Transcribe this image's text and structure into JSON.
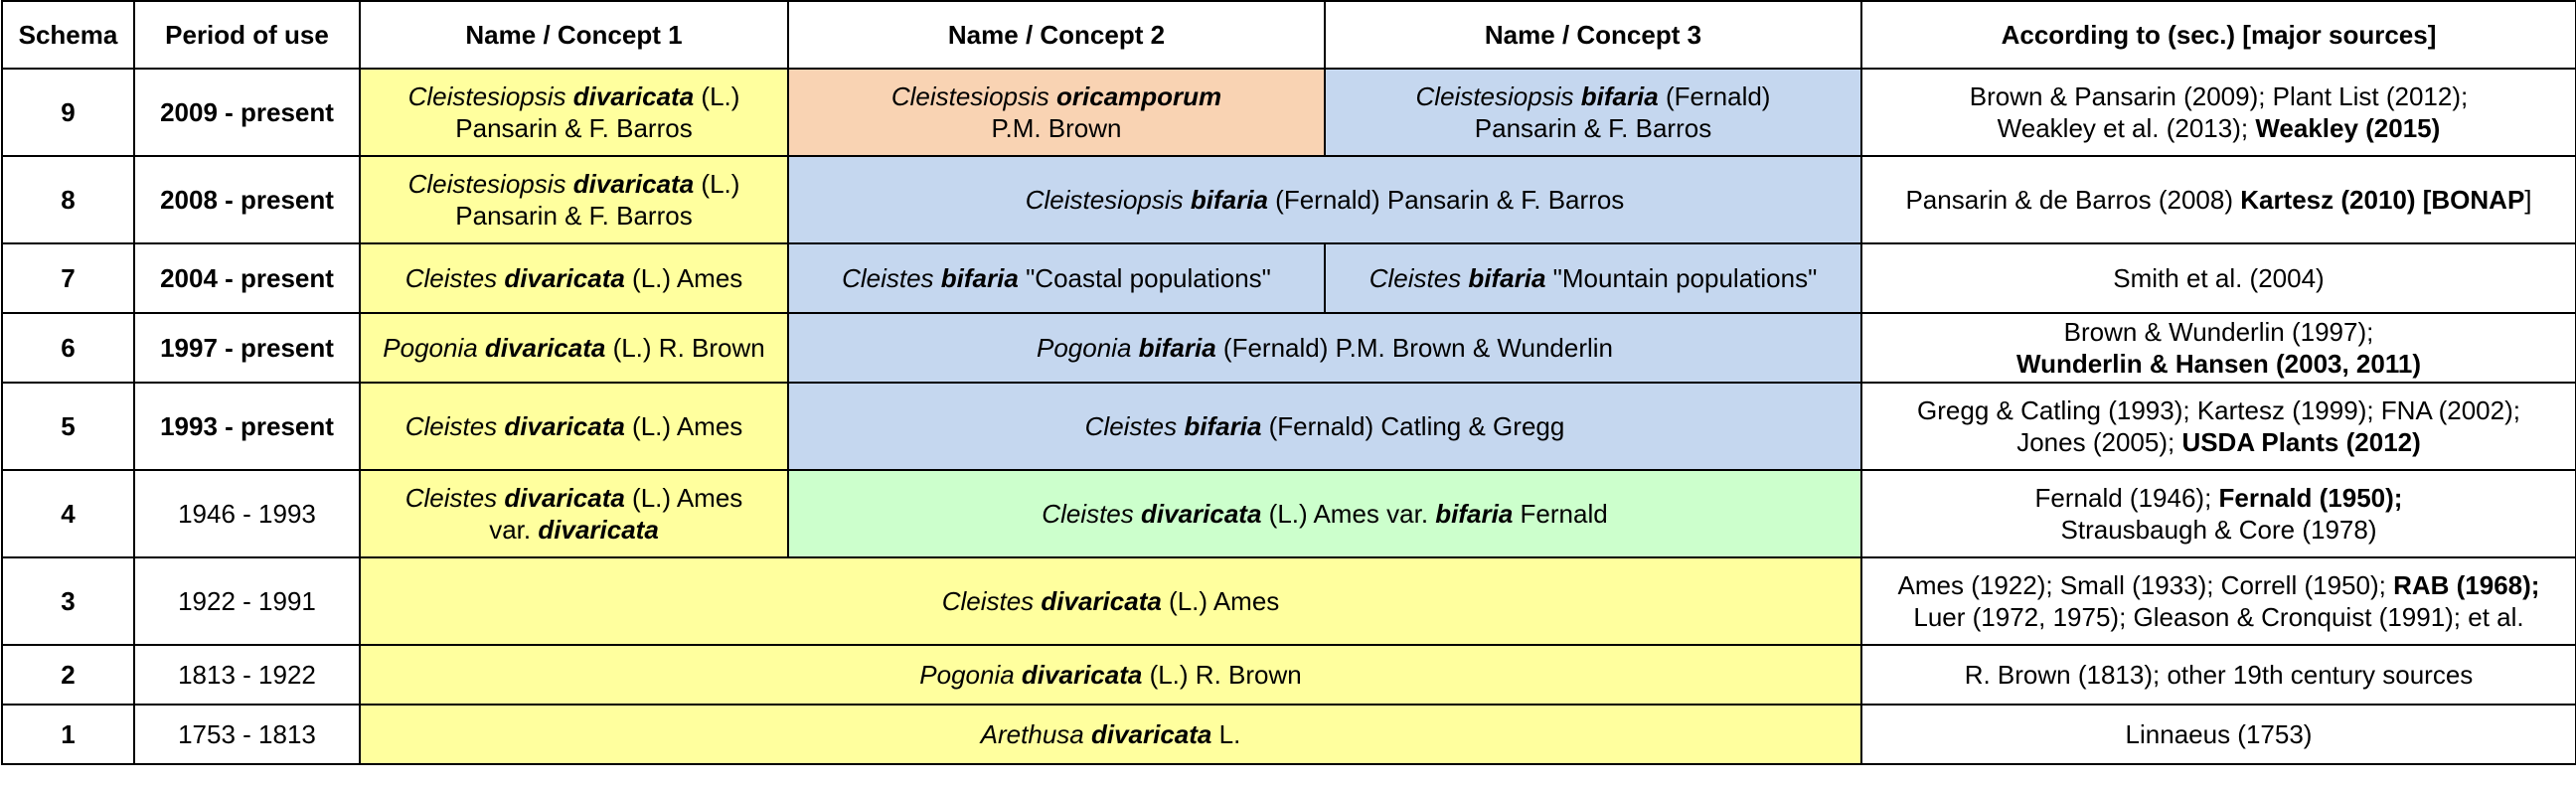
{
  "colors": {
    "yellow": "#ffff9e",
    "orange": "#f9d3b3",
    "blue": "#c5d7ef",
    "green": "#ccffcc",
    "white": "#ffffff",
    "border": "#000000"
  },
  "headers": {
    "schema": "Schema",
    "period": "Period of use",
    "concept1": "Name / Concept 1",
    "concept2": "Name / Concept 2",
    "concept3": "Name / Concept 3",
    "sources": "According to (sec.) [major sources]"
  },
  "rows": [
    {
      "schema": "9",
      "period": "2009 - present",
      "c1": {
        "genus": "Cleistesiopsis",
        "epithet": "divaricata",
        "author1": "(L.)",
        "author2": "Pansarin & F. Barros"
      },
      "c2": {
        "genus": "Cleistesiopsis",
        "epithet": "oricamporum",
        "author": "P.M. Brown"
      },
      "c3": {
        "genus": "Cleistesiopsis",
        "epithet": "bifaria",
        "author1": "(Fernald)",
        "author2": "Pansarin & F. Barros"
      },
      "sources": {
        "line1": "Brown & Pansarin (2009); Plant List (2012);",
        "line2a": "Weakley et al. (2013); ",
        "line2b": "Weakley (2015)"
      }
    },
    {
      "schema": "8",
      "period": "2008 - present",
      "c1": {
        "genus": "Cleistesiopsis",
        "epithet": "divaricata",
        "author1": "(L.)",
        "author2": "Pansarin & F. Barros"
      },
      "c23": {
        "genus": "Cleistesiopsis",
        "epithet": "bifaria",
        "author": "(Fernald) Pansarin & F. Barros"
      },
      "sources": {
        "a": "Pansarin & de Barros (2008) ",
        "b": "Kartesz (2010) [BONAP",
        "c": "]"
      }
    },
    {
      "schema": "7",
      "period": "2004 - present",
      "c1": {
        "genus": "Cleistes",
        "epithet": "divaricata",
        "author": "(L.) Ames"
      },
      "c2": {
        "genus": "Cleistes",
        "epithet": "bifaria",
        "note": "\"Coastal populations\""
      },
      "c3": {
        "genus": "Cleistes",
        "epithet": "bifaria",
        "note": "\"Mountain populations\""
      },
      "sources": {
        "text": "Smith et al. (2004)"
      }
    },
    {
      "schema": "6",
      "period": "1997 - present",
      "c1": {
        "genus": "Pogonia",
        "epithet": "divaricata",
        "author": "(L.) R. Brown"
      },
      "c23": {
        "genus": "Pogonia",
        "epithet": "bifaria",
        "author": "(Fernald) P.M. Brown & Wunderlin"
      },
      "sources": {
        "line1": "Brown & Wunderlin (1997);",
        "line2": "Wunderlin & Hansen (2003, 2011)"
      }
    },
    {
      "schema": "5",
      "period": "1993 - present",
      "c1": {
        "genus": "Cleistes",
        "epithet": "divaricata",
        "author": "(L.) Ames"
      },
      "c23": {
        "genus": "Cleistes",
        "epithet": "bifaria",
        "author": "(Fernald) Catling & Gregg"
      },
      "sources": {
        "line1": "Gregg & Catling (1993); Kartesz (1999); FNA (2002);",
        "line2a": "Jones (2005); ",
        "line2b": "USDA Plants (2012)"
      }
    },
    {
      "schema": "4",
      "period": "1946 - 1993",
      "c1": {
        "genus": "Cleistes",
        "epithet": "divaricata",
        "author": "(L.) Ames",
        "var": "var.",
        "varname": "divaricata"
      },
      "c23": {
        "genus": "Cleistes",
        "epithet": "divaricata",
        "author": "(L.) Ames var.",
        "varname": "bifaria",
        "varauthor": "Fernald"
      },
      "sources": {
        "line1a": "Fernald (1946); ",
        "line1b": "Fernald (1950);",
        "line2": "Strausbaugh & Core (1978)"
      }
    },
    {
      "schema": "3",
      "period": "1922 - 1991",
      "c123": {
        "genus": "Cleistes",
        "epithet": "divaricata",
        "author": "(L.) Ames"
      },
      "sources": {
        "line1a": "Ames (1922); Small (1933); Correll (1950); ",
        "line1b": "RAB (1968);",
        "line2": "Luer (1972, 1975); Gleason & Cronquist (1991); et al."
      }
    },
    {
      "schema": "2",
      "period": "1813 - 1922",
      "c123": {
        "genus": "Pogonia",
        "epithet": "divaricata",
        "author": "(L.) R. Brown"
      },
      "sources": {
        "text": "R. Brown (1813); other 19th century sources"
      }
    },
    {
      "schema": "1",
      "period": "1753 - 1813",
      "c123": {
        "genus": "Arethusa",
        "epithet": "divaricata",
        "author": "L."
      },
      "sources": {
        "text": "Linnaeus (1753)"
      }
    }
  ]
}
